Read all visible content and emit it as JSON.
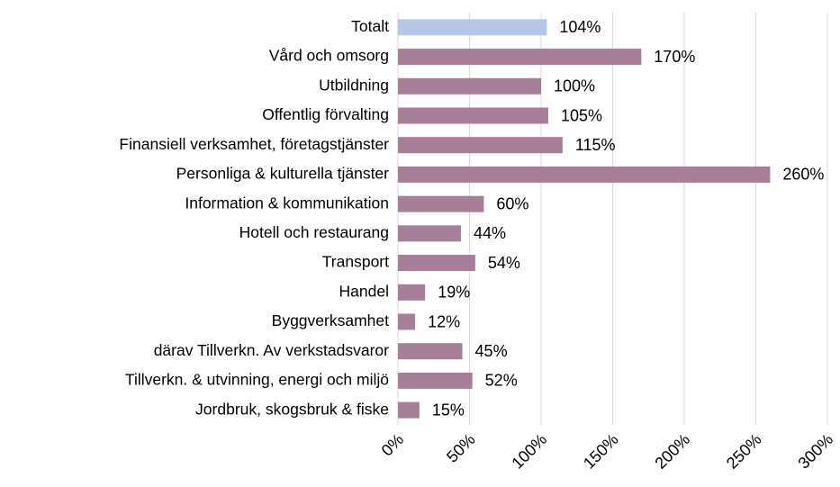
{
  "chart_data": {
    "type": "bar",
    "orientation": "horizontal",
    "categories": [
      "Totalt",
      "Vård och omsorg",
      "Utbildning",
      "Offentlig förvalting",
      "Finansiell verksamhet, företagstjänster",
      "Personliga & kulturella tjänster",
      "Information & kommunikation",
      "Hotell och restaurang",
      "Transport",
      "Handel",
      "Byggverksamhet",
      "därav Tillverkn. Av verkstadsvaror",
      "Tillverkn. & utvinning, energi och miljö",
      "Jordbruk, skogsbruk & fiske"
    ],
    "values": [
      104,
      170,
      100,
      105,
      115,
      260,
      60,
      44,
      54,
      19,
      12,
      45,
      52,
      15
    ],
    "value_labels": [
      "104%",
      "170%",
      "100%",
      "105%",
      "115%",
      "260%",
      "60%",
      "44%",
      "54%",
      "19%",
      "12%",
      "45%",
      "52%",
      "15%"
    ],
    "colors": [
      "#b4c7e7",
      "#a87f98",
      "#a87f98",
      "#a87f98",
      "#a87f98",
      "#a87f98",
      "#a87f98",
      "#a87f98",
      "#a87f98",
      "#a87f98",
      "#a87f98",
      "#a87f98",
      "#a87f98",
      "#a87f98"
    ],
    "xlim": [
      0,
      300
    ],
    "xticks": [
      {
        "value": 0,
        "label": "0%"
      },
      {
        "value": 50,
        "label": "50%"
      },
      {
        "value": 100,
        "label": "100%"
      },
      {
        "value": 150,
        "label": "150%"
      },
      {
        "value": 200,
        "label": "200%"
      },
      {
        "value": 250,
        "label": "250%"
      },
      {
        "value": 300,
        "label": "300%"
      }
    ],
    "grid": true
  }
}
